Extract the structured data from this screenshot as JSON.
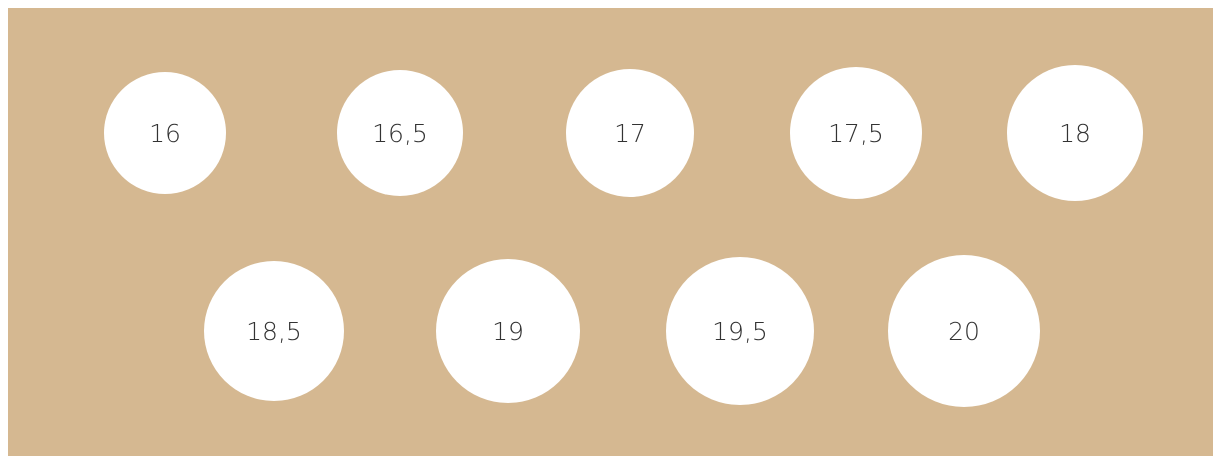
{
  "sizes": [
    "16",
    "16,5",
    "17",
    "17,5",
    "18",
    "18,5",
    "19",
    "19,5",
    "20"
  ]
}
